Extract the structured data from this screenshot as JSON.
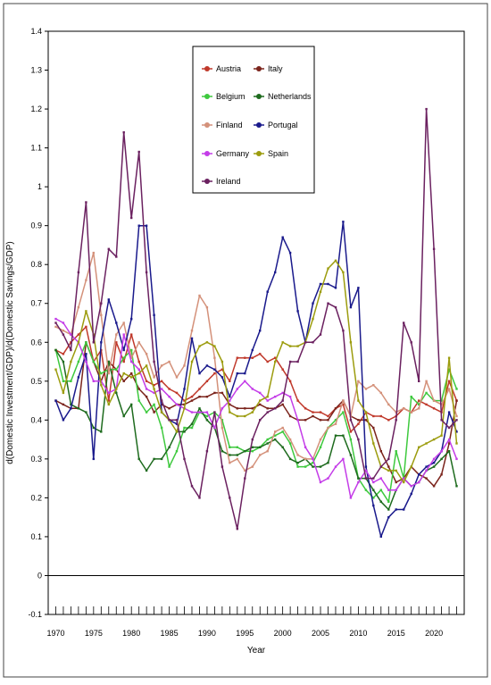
{
  "chart_data": {
    "type": "line",
    "xlabel": "Year",
    "ylabel": "d(Domestic Investment/GDP)/d(Domestic Savings/GDP)",
    "xlim": [
      1969,
      2024
    ],
    "ylim": [
      -0.1,
      1.4
    ],
    "xticks": [
      1970,
      1975,
      1980,
      1985,
      1990,
      1995,
      2000,
      2005,
      2010,
      2015,
      2020
    ],
    "yticks": [
      -0.1,
      0,
      0.1,
      0.2,
      0.3,
      0.4,
      0.5,
      0.6,
      0.7,
      0.8,
      0.9,
      1,
      1.1,
      1.2,
      1.3,
      1.4
    ],
    "ytick_labels": [
      "-0.1",
      "0",
      "0.1",
      "0.2",
      "0.3",
      "0.4",
      "0.5",
      "0.6",
      "0.7",
      "0.8",
      "0.9",
      "1",
      "1.1",
      "1.2",
      "1.3",
      "1.4"
    ],
    "grid": false,
    "legend_position": "top-center",
    "x": [
      1970,
      1971,
      1972,
      1973,
      1974,
      1975,
      1976,
      1977,
      1978,
      1979,
      1980,
      1981,
      1982,
      1983,
      1984,
      1985,
      1986,
      1987,
      1988,
      1989,
      1990,
      1991,
      1992,
      1993,
      1994,
      1995,
      1996,
      1997,
      1998,
      1999,
      2000,
      2001,
      2002,
      2003,
      2004,
      2005,
      2006,
      2007,
      2008,
      2009,
      2010,
      2011,
      2012,
      2013,
      2014,
      2015,
      2016,
      2017,
      2018,
      2019,
      2020,
      2021,
      2022,
      2023
    ],
    "series": [
      {
        "name": "Austria",
        "color": "#c0392b",
        "values": [
          0.58,
          0.57,
          0.6,
          0.62,
          0.64,
          0.55,
          0.58,
          0.45,
          0.6,
          0.55,
          0.62,
          0.55,
          0.5,
          0.49,
          0.5,
          0.48,
          0.47,
          0.45,
          0.46,
          0.48,
          0.5,
          0.52,
          0.53,
          0.5,
          0.56,
          0.56,
          0.56,
          0.57,
          0.55,
          0.56,
          0.53,
          0.5,
          0.45,
          0.43,
          0.42,
          0.42,
          0.41,
          0.43,
          0.44,
          0.37,
          0.39,
          0.42,
          0.41,
          0.41,
          0.4,
          0.41,
          0.43,
          0.42,
          0.45,
          0.44,
          0.43,
          0.42,
          0.5,
          0.45
        ]
      },
      {
        "name": "Italy",
        "color": "#7b241c",
        "values": [
          0.45,
          0.44,
          0.43,
          0.43,
          0.6,
          0.55,
          0.5,
          0.55,
          0.53,
          0.5,
          0.52,
          0.48,
          0.46,
          0.42,
          0.44,
          0.43,
          0.44,
          0.44,
          0.45,
          0.46,
          0.46,
          0.47,
          0.47,
          0.44,
          0.43,
          0.43,
          0.43,
          0.44,
          0.43,
          0.43,
          0.44,
          0.41,
          0.4,
          0.4,
          0.41,
          0.4,
          0.4,
          0.43,
          0.45,
          0.41,
          0.4,
          0.4,
          0.38,
          0.32,
          0.28,
          0.24,
          0.25,
          0.28,
          0.26,
          0.25,
          0.23,
          0.26,
          0.34,
          0.45
        ]
      },
      {
        "name": "Belgium",
        "color": "#3ec93e",
        "values": [
          0.58,
          0.5,
          0.5,
          0.55,
          0.6,
          0.55,
          0.52,
          0.53,
          0.53,
          0.56,
          0.58,
          0.45,
          0.42,
          0.44,
          0.38,
          0.28,
          0.32,
          0.38,
          0.38,
          0.42,
          0.41,
          0.42,
          0.4,
          0.33,
          0.33,
          0.32,
          0.32,
          0.33,
          0.35,
          0.36,
          0.37,
          0.34,
          0.28,
          0.28,
          0.29,
          0.33,
          0.38,
          0.4,
          0.42,
          0.35,
          0.25,
          0.22,
          0.2,
          0.22,
          0.19,
          0.32,
          0.25,
          0.46,
          0.44,
          0.47,
          0.45,
          0.45,
          0.53,
          0.48
        ]
      },
      {
        "name": "Netherlands",
        "color": "#1e6b1e",
        "values": [
          0.58,
          0.55,
          0.44,
          0.43,
          0.42,
          0.38,
          0.37,
          0.55,
          0.47,
          0.41,
          0.44,
          0.3,
          0.27,
          0.3,
          0.3,
          0.33,
          0.37,
          0.37,
          0.39,
          0.43,
          0.4,
          0.38,
          0.32,
          0.31,
          0.31,
          0.32,
          0.33,
          0.33,
          0.34,
          0.35,
          0.33,
          0.3,
          0.29,
          0.3,
          0.28,
          0.28,
          0.29,
          0.36,
          0.36,
          0.31,
          0.25,
          0.25,
          0.22,
          0.19,
          0.17,
          0.22,
          0.25,
          0.23,
          0.24,
          0.27,
          0.28,
          0.3,
          0.32,
          0.23
        ]
      },
      {
        "name": "Finland",
        "color": "#d4917a",
        "values": [
          0.64,
          0.63,
          0.62,
          0.69,
          0.76,
          0.83,
          0.67,
          0.52,
          0.62,
          0.65,
          0.56,
          0.6,
          0.57,
          0.51,
          0.54,
          0.55,
          0.51,
          0.54,
          0.63,
          0.72,
          0.69,
          0.56,
          0.38,
          0.29,
          0.3,
          0.27,
          0.28,
          0.31,
          0.32,
          0.37,
          0.38,
          0.35,
          0.31,
          0.3,
          0.3,
          0.35,
          0.38,
          0.39,
          0.45,
          0.41,
          0.5,
          0.48,
          0.49,
          0.47,
          0.44,
          0.42,
          0.43,
          0.42,
          0.43,
          0.5,
          0.45,
          0.44,
          0.48,
          0.41
        ]
      },
      {
        "name": "Portugal",
        "color": "#1a1a8c",
        "values": [
          0.45,
          0.4,
          0.43,
          0.51,
          0.57,
          0.3,
          0.6,
          0.71,
          0.65,
          0.58,
          0.66,
          0.9,
          0.9,
          0.67,
          0.42,
          0.4,
          0.39,
          0.48,
          0.61,
          0.52,
          0.54,
          0.53,
          0.51,
          0.46,
          0.52,
          0.52,
          0.58,
          0.63,
          0.73,
          0.78,
          0.87,
          0.83,
          0.68,
          0.6,
          0.7,
          0.75,
          0.75,
          0.74,
          0.91,
          0.69,
          0.74,
          0.28,
          0.18,
          0.1,
          0.15,
          0.17,
          0.17,
          0.21,
          0.26,
          0.28,
          0.29,
          0.32,
          0.42,
          0.37
        ]
      },
      {
        "name": "Germany",
        "color": "#c43ce8",
        "values": [
          0.66,
          0.65,
          0.62,
          0.6,
          0.55,
          0.5,
          0.5,
          0.47,
          0.48,
          0.62,
          0.55,
          0.53,
          0.48,
          0.47,
          0.48,
          0.46,
          0.44,
          0.43,
          0.42,
          0.42,
          0.42,
          0.38,
          0.43,
          0.45,
          0.48,
          0.5,
          0.48,
          0.47,
          0.45,
          0.46,
          0.47,
          0.46,
          0.4,
          0.33,
          0.3,
          0.24,
          0.25,
          0.28,
          0.3,
          0.2,
          0.24,
          0.27,
          0.24,
          0.25,
          0.22,
          0.22,
          0.25,
          0.23,
          0.24,
          0.27,
          0.3,
          0.32,
          0.35,
          0.3
        ]
      },
      {
        "name": "Spain",
        "color": "#9c9c0e",
        "values": [
          0.53,
          0.47,
          0.55,
          0.6,
          0.68,
          0.62,
          0.49,
          0.44,
          0.48,
          0.52,
          0.51,
          0.52,
          0.54,
          0.48,
          0.42,
          0.4,
          0.37,
          0.43,
          0.55,
          0.59,
          0.6,
          0.59,
          0.55,
          0.42,
          0.41,
          0.41,
          0.42,
          0.45,
          0.46,
          0.55,
          0.6,
          0.59,
          0.59,
          0.6,
          0.66,
          0.73,
          0.79,
          0.81,
          0.78,
          0.6,
          0.45,
          0.42,
          0.34,
          0.28,
          0.27,
          0.27,
          0.24,
          0.28,
          0.33,
          0.34,
          0.35,
          0.36,
          0.56,
          0.34
        ]
      },
      {
        "name": "Ireland",
        "color": "#6b2160",
        "values": [
          0.65,
          0.62,
          0.58,
          0.78,
          0.96,
          0.6,
          0.7,
          0.84,
          0.82,
          1.14,
          0.92,
          1.09,
          0.78,
          0.55,
          0.45,
          0.4,
          0.4,
          0.3,
          0.23,
          0.2,
          0.32,
          0.42,
          0.28,
          0.2,
          0.12,
          0.25,
          0.35,
          0.4,
          0.42,
          0.43,
          0.45,
          0.55,
          0.55,
          0.6,
          0.6,
          0.62,
          0.7,
          0.69,
          0.63,
          0.4,
          0.35,
          0.25,
          0.25,
          0.28,
          0.3,
          0.4,
          0.65,
          0.6,
          0.5,
          1.2,
          0.84,
          0.4,
          0.38,
          0.4
        ]
      }
    ]
  }
}
